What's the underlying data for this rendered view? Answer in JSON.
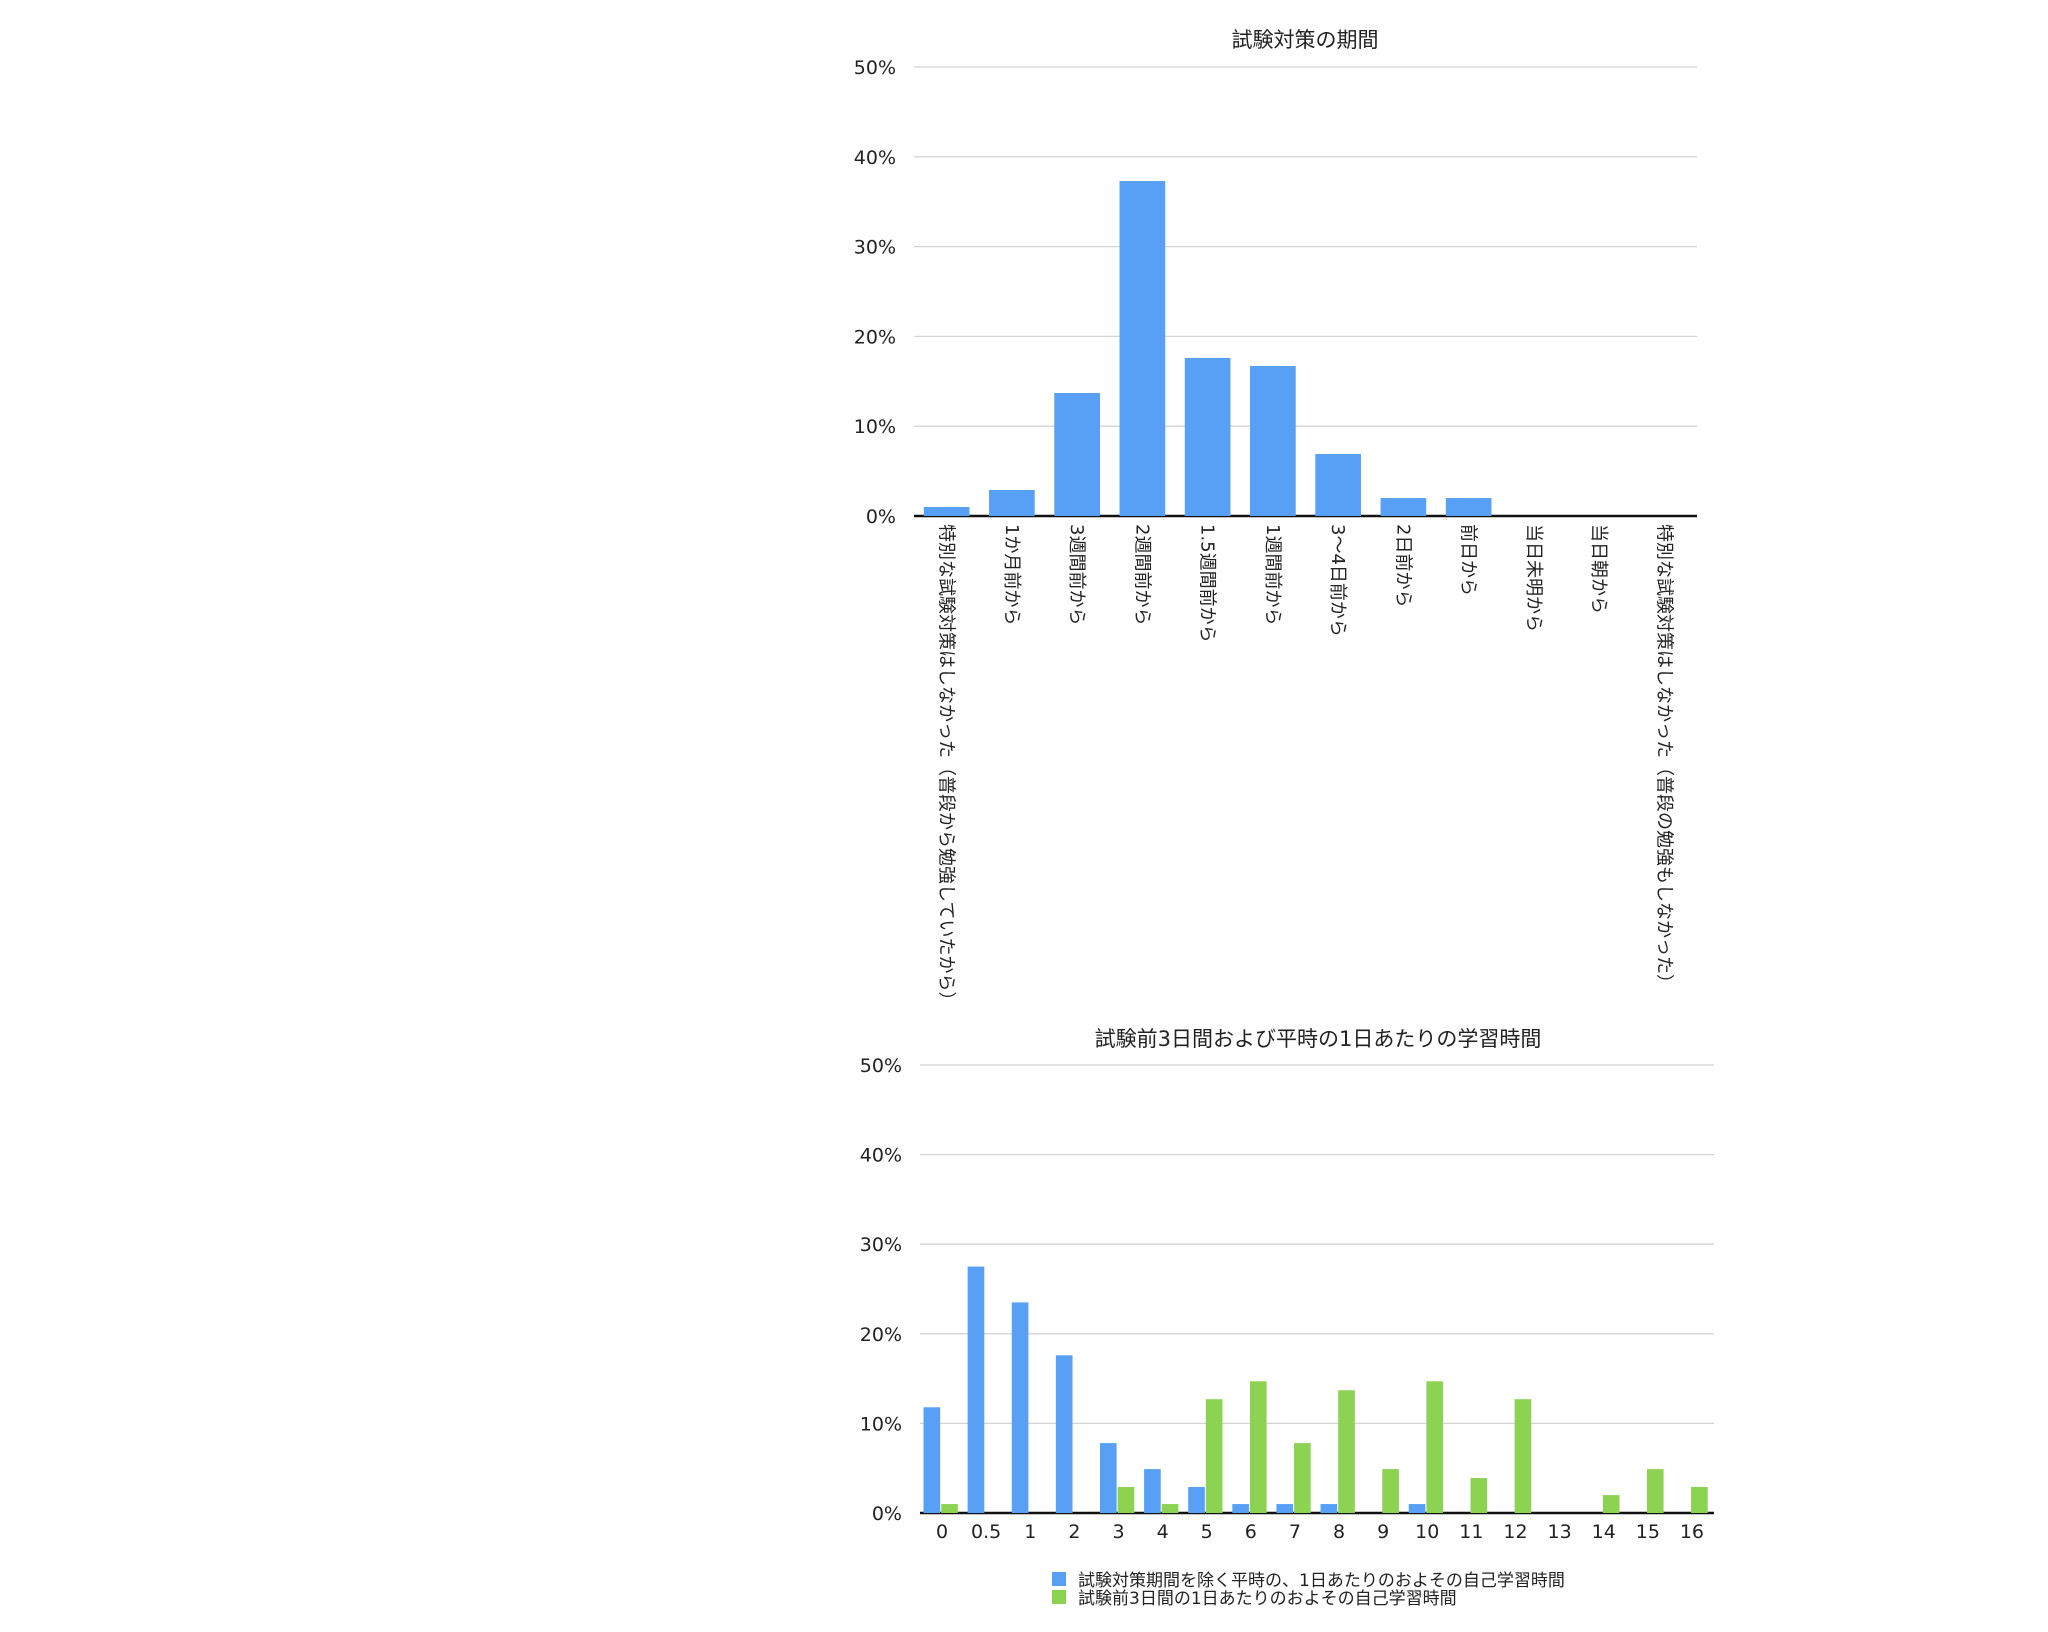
{
  "chart_data": [
    {
      "type": "bar",
      "title": "試験対策の期間",
      "xlabel": "",
      "ylabel": "",
      "ylim": [
        0,
        50
      ],
      "yticks": [
        "0%",
        "10%",
        "20%",
        "30%",
        "40%",
        "50%"
      ],
      "grid": true,
      "categories": [
        "特別な試験対策はしなかった（普段から勉強していたから）",
        "1か月前から",
        "3週間前から",
        "2週間前から",
        "1.5週間前から",
        "1週間前から",
        "3〜4日前から",
        "2日前から",
        "前日から",
        "当日未明から",
        "当日朝から",
        "特別な試験対策はしなかった（普段の勉強もしなかった）"
      ],
      "values": [
        1.0,
        2.9,
        13.7,
        37.3,
        17.6,
        16.7,
        6.9,
        2.0,
        2.0,
        0,
        0,
        0
      ],
      "colors": {
        "bar": "#57a0f5"
      }
    },
    {
      "type": "bar",
      "title": "試験前3日間および平時の1日あたりの学習時間",
      "xlabel": "",
      "ylabel": "",
      "ylim": [
        0,
        50
      ],
      "yticks": [
        "0%",
        "10%",
        "20%",
        "30%",
        "40%",
        "50%"
      ],
      "grid": true,
      "legend_position": "bottom",
      "categories": [
        "0",
        "0.5",
        "1",
        "2",
        "3",
        "4",
        "5",
        "6",
        "7",
        "8",
        "9",
        "10",
        "11",
        "12",
        "13",
        "14",
        "15",
        "16"
      ],
      "series": [
        {
          "name": "試験対策期間を除く平時の、1日あたりのおよその自己学習時間",
          "color": "#57a0f5",
          "values": [
            11.8,
            27.5,
            23.5,
            17.6,
            7.8,
            4.9,
            2.9,
            1.0,
            1.0,
            1.0,
            0,
            1.0,
            0,
            0,
            0,
            0,
            0,
            0
          ]
        },
        {
          "name": "試験前3日間の1日あたりのおよその自己学習時間",
          "color": "#8cd352",
          "values": [
            1.0,
            0,
            0,
            0,
            2.9,
            1.0,
            12.7,
            14.7,
            7.8,
            13.7,
            4.9,
            14.7,
            3.9,
            12.7,
            0,
            2.0,
            4.9,
            2.9
          ]
        }
      ]
    }
  ]
}
